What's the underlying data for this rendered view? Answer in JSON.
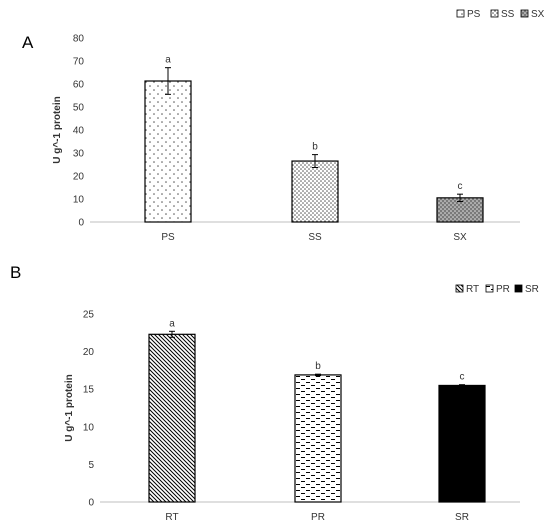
{
  "chart_data": [
    {
      "panel": "A",
      "type": "bar",
      "categories": [
        "PS",
        "SS",
        "SX"
      ],
      "values": [
        61.3,
        26.5,
        10.5
      ],
      "errors": [
        5.8,
        2.8,
        1.6
      ],
      "significance": [
        "a",
        "b",
        "c"
      ],
      "ylabel": "U g^-1 protein",
      "ylim": [
        0,
        80
      ],
      "yticks": [
        "0",
        "10",
        "20",
        "30",
        "40",
        "50",
        "60",
        "70",
        "80"
      ],
      "grid": false,
      "legend_position": "top-right",
      "legend": [
        "PS",
        "SS",
        "SX"
      ],
      "patterns": [
        "dots-sparse",
        "dots-dense",
        "dots-dark-gray"
      ]
    },
    {
      "panel": "B",
      "type": "bar",
      "categories": [
        "RT",
        "PR",
        "SR"
      ],
      "values": [
        22.3,
        16.9,
        15.5
      ],
      "errors": [
        0.4,
        0.1,
        0.1
      ],
      "significance": [
        "a",
        "b",
        "c"
      ],
      "ylabel": "U g^-1 protein",
      "ylim": [
        0,
        25
      ],
      "yticks": [
        "0",
        "5",
        "10",
        "15",
        "20",
        "25"
      ],
      "grid": false,
      "legend_position": "top-right",
      "legend": [
        "RT",
        "PR",
        "SR"
      ],
      "patterns": [
        "diagonal-lines",
        "dashes",
        "solid-black"
      ]
    }
  ]
}
